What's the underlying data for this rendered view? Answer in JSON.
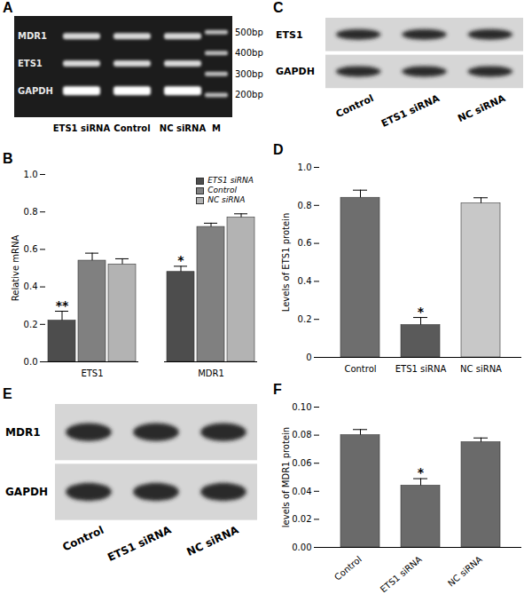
{
  "chart_data": [
    {
      "type": "gel",
      "title": "A",
      "rows": [
        "MDR1",
        "ETS1",
        "GAPDH"
      ],
      "lanes": [
        "ETS1 siRNA",
        "Control",
        "NC siRNA",
        "M"
      ],
      "marker_labels": [
        "500bp",
        "400bp",
        "300bp",
        "200bp"
      ]
    },
    {
      "type": "bar",
      "title": "B",
      "categories": [
        "ETS1",
        "MDR1"
      ],
      "series": [
        {
          "name": "ETS1 siRNA",
          "color": "#4d4d4d",
          "values": [
            0.22,
            0.48
          ],
          "errors": [
            0.05,
            0.03
          ]
        },
        {
          "name": "Control",
          "color": "#808080",
          "values": [
            0.54,
            0.72
          ],
          "errors": [
            0.04,
            0.02
          ]
        },
        {
          "name": "NC siRNA",
          "color": "#b3b3b3",
          "values": [
            0.52,
            0.77
          ],
          "errors": [
            0.03,
            0.02
          ]
        }
      ],
      "ylabel": "Relative mRNA",
      "ylim": [
        0,
        1.0
      ],
      "yticks": [
        {
          "value": 0,
          "label": "0.0"
        },
        {
          "value": 0.2,
          "label": "0.2"
        },
        {
          "value": 0.4,
          "label": "0.4"
        },
        {
          "value": 0.6,
          "label": "0.6"
        },
        {
          "value": 0.8,
          "label": "0.8"
        },
        {
          "value": 1.0,
          "label": "1.0"
        }
      ],
      "legend": "top-right",
      "annotations": [
        {
          "text": "**",
          "category": "ETS1",
          "series": "ETS1 siRNA"
        },
        {
          "text": "*",
          "category": "MDR1",
          "series": "ETS1 siRNA"
        }
      ]
    },
    {
      "type": "blot",
      "title": "C",
      "rows": [
        "ETS1",
        "GAPDH"
      ],
      "lanes": [
        "Control",
        "ETS1 siRNA",
        "NC siRNA"
      ]
    },
    {
      "type": "bar",
      "title": "D",
      "categories": [
        "Control",
        "ETS1 siRNA",
        "NC siRNA"
      ],
      "values": [
        0.84,
        0.17,
        0.81
      ],
      "errors": [
        0.04,
        0.04,
        0.03
      ],
      "colors": [
        "#6e6e6e",
        "#5a5a5a",
        "#c8c8c8"
      ],
      "ylabel": "Levels of ETS1 protein",
      "ylim": [
        0,
        1.0
      ],
      "yticks": [
        0,
        0.2,
        0.4,
        0.6,
        0.8,
        {
          "value": 1.0,
          "label": "1.0"
        }
      ],
      "annotations": [
        {
          "text": "*",
          "category": "ETS1 siRNA"
        }
      ]
    },
    {
      "type": "blot",
      "title": "E",
      "rows": [
        "MDR1",
        "GAPDH"
      ],
      "lanes": [
        "Control",
        "ETS1 siRNA",
        "NC siRNA"
      ]
    },
    {
      "type": "bar",
      "title": "F",
      "categories": [
        "Control",
        "ETS1 siRNA",
        "NC siRNA"
      ],
      "values": [
        0.08,
        0.044,
        0.075
      ],
      "errors": [
        0.004,
        0.005,
        0.003
      ],
      "color": "#6a6a6a",
      "ylabel": "levels of MDR1 protein",
      "ylim": [
        0,
        0.1
      ],
      "yticks": [
        {
          "value": 0,
          "label": "0.00"
        },
        {
          "value": 0.02,
          "label": "0.02"
        },
        {
          "value": 0.04,
          "label": "0.04"
        },
        {
          "value": 0.06,
          "label": "0.06"
        },
        {
          "value": 0.08,
          "label": "0.08"
        },
        {
          "value": 0.1,
          "label": "0.10"
        }
      ],
      "annotations": [
        {
          "text": "*",
          "category": "ETS1 siRNA"
        }
      ]
    }
  ]
}
